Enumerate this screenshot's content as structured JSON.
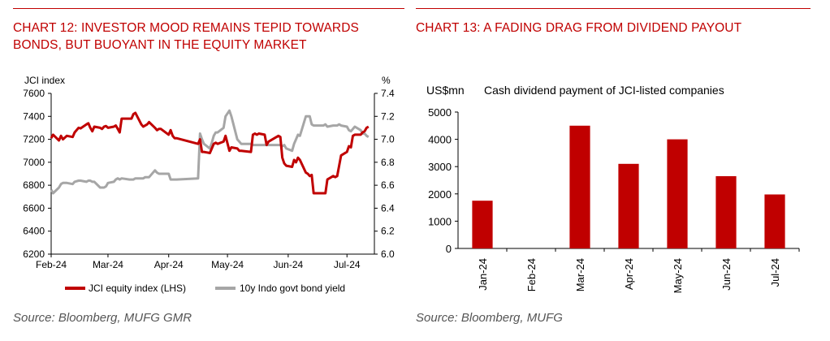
{
  "colors": {
    "accent": "#c00000",
    "series_red": "#c00000",
    "series_grey": "#a6a6a6",
    "source_text": "#555555"
  },
  "left": {
    "title_line1": "CHART 12: INVESTOR MOOD REMAINS TEPID TOWARDS",
    "title_line2": "BONDS, BUT BUOYANT IN THE EQUITY MARKET",
    "source": "Source: Bloomberg, MUFG GMR"
  },
  "right": {
    "title": "CHART 13: A FADING DRAG FROM DIVIDEND PAYOUT",
    "source": "Source: Bloomberg, MUFG"
  },
  "chart_data": [
    {
      "type": "line",
      "title": "",
      "ylabel": "JCI index",
      "y2label": "%",
      "ylim": [
        6200,
        7600
      ],
      "y2lim": [
        6.0,
        7.4
      ],
      "yticks": [
        "7600",
        "7400",
        "7200",
        "7000",
        "6800",
        "6600",
        "6400",
        "6200"
      ],
      "y2ticks": [
        "7.4",
        "7.2",
        "7.0",
        "6.8",
        "6.6",
        "6.4",
        "6.2",
        "6.0"
      ],
      "xticks": [
        "Feb-24",
        "Mar-24",
        "Apr-24",
        "May-24",
        "Jun-24",
        "Jul-24"
      ],
      "grid": false,
      "legend": "bottom",
      "series": [
        {
          "name": "JCI equity index (LHS)",
          "axis": "left",
          "color": "#c00000",
          "x": [
            "2024-02-01",
            "2024-02-02",
            "2024-02-05",
            "2024-02-06",
            "2024-02-07",
            "2024-02-09",
            "2024-02-12",
            "2024-02-13",
            "2024-02-15",
            "2024-02-16",
            "2024-02-19",
            "2024-02-20",
            "2024-02-21",
            "2024-02-22",
            "2024-02-23",
            "2024-02-26",
            "2024-02-27",
            "2024-02-28",
            "2024-02-29",
            "2024-03-01",
            "2024-03-04",
            "2024-03-05",
            "2024-03-06",
            "2024-03-07",
            "2024-03-08",
            "2024-03-12",
            "2024-03-13",
            "2024-03-14",
            "2024-03-15",
            "2024-03-18",
            "2024-03-19",
            "2024-03-20",
            "2024-03-21",
            "2024-03-22",
            "2024-03-25",
            "2024-03-26",
            "2024-03-27",
            "2024-03-28",
            "2024-04-01",
            "2024-04-02",
            "2024-04-03",
            "2024-04-04",
            "2024-04-05",
            "2024-04-16",
            "2024-04-17",
            "2024-04-18",
            "2024-04-19",
            "2024-04-22",
            "2024-04-23",
            "2024-04-24",
            "2024-04-25",
            "2024-04-26",
            "2024-04-29",
            "2024-04-30",
            "2024-05-02",
            "2024-05-03",
            "2024-05-06",
            "2024-05-07",
            "2024-05-08",
            "2024-05-13",
            "2024-05-14",
            "2024-05-15",
            "2024-05-16",
            "2024-05-17",
            "2024-05-20",
            "2024-05-21",
            "2024-05-22",
            "2024-05-27",
            "2024-05-28",
            "2024-05-29",
            "2024-05-30",
            "2024-05-31",
            "2024-06-03",
            "2024-06-04",
            "2024-06-05",
            "2024-06-06",
            "2024-06-07",
            "2024-06-10",
            "2024-06-11",
            "2024-06-12",
            "2024-06-13",
            "2024-06-14",
            "2024-06-19",
            "2024-06-20",
            "2024-06-21",
            "2024-06-24",
            "2024-06-25",
            "2024-06-26",
            "2024-06-27",
            "2024-06-28",
            "2024-07-01",
            "2024-07-02",
            "2024-07-03",
            "2024-07-04",
            "2024-07-05",
            "2024-07-08",
            "2024-07-09",
            "2024-07-10",
            "2024-07-11",
            "2024-07-12"
          ],
          "values": [
            7210,
            7240,
            7190,
            7230,
            7200,
            7230,
            7220,
            7260,
            7300,
            7295,
            7330,
            7340,
            7300,
            7270,
            7310,
            7300,
            7290,
            7310,
            7316,
            7300,
            7310,
            7320,
            7290,
            7260,
            7380,
            7380,
            7380,
            7420,
            7430,
            7330,
            7310,
            7320,
            7330,
            7350,
            7300,
            7280,
            7290,
            7290,
            7240,
            7280,
            7230,
            7210,
            7210,
            7160,
            7200,
            7090,
            7090,
            7080,
            7120,
            7160,
            7170,
            7160,
            7180,
            7230,
            7100,
            7130,
            7120,
            7100,
            7100,
            7090,
            7240,
            7250,
            7240,
            7250,
            7240,
            7150,
            7180,
            7230,
            7220,
            7040,
            6990,
            6970,
            6960,
            7020,
            7000,
            7040,
            7020,
            6910,
            6900,
            6880,
            6890,
            6730,
            6730,
            6730,
            6850,
            6880,
            6870,
            6880,
            6970,
            7060,
            7090,
            7140,
            7130,
            7230,
            7240,
            7240,
            7260,
            7270,
            7300,
            7310
          ]
        },
        {
          "name": "10y Indo govt bond yield",
          "axis": "right",
          "color": "#a6a6a6",
          "x": [
            "2024-02-01",
            "2024-02-02",
            "2024-02-05",
            "2024-02-06",
            "2024-02-07",
            "2024-02-09",
            "2024-02-12",
            "2024-02-13",
            "2024-02-15",
            "2024-02-16",
            "2024-02-19",
            "2024-02-20",
            "2024-02-21",
            "2024-02-22",
            "2024-02-23",
            "2024-02-26",
            "2024-02-27",
            "2024-02-28",
            "2024-02-29",
            "2024-03-01",
            "2024-03-04",
            "2024-03-05",
            "2024-03-06",
            "2024-03-07",
            "2024-03-08",
            "2024-03-12",
            "2024-03-13",
            "2024-03-14",
            "2024-03-15",
            "2024-03-18",
            "2024-03-19",
            "2024-03-20",
            "2024-03-21",
            "2024-03-22",
            "2024-03-25",
            "2024-03-26",
            "2024-03-27",
            "2024-03-28",
            "2024-04-01",
            "2024-04-02",
            "2024-04-03",
            "2024-04-04",
            "2024-04-05",
            "2024-04-16",
            "2024-04-17",
            "2024-04-18",
            "2024-04-19",
            "2024-04-22",
            "2024-04-23",
            "2024-04-24",
            "2024-04-25",
            "2024-04-26",
            "2024-04-29",
            "2024-04-30",
            "2024-05-02",
            "2024-05-03",
            "2024-05-06",
            "2024-05-07",
            "2024-05-08",
            "2024-05-13",
            "2024-05-14",
            "2024-05-15",
            "2024-05-16",
            "2024-05-17",
            "2024-05-20",
            "2024-05-21",
            "2024-05-22",
            "2024-05-27",
            "2024-05-28",
            "2024-05-29",
            "2024-05-30",
            "2024-05-31",
            "2024-06-03",
            "2024-06-04",
            "2024-06-05",
            "2024-06-06",
            "2024-06-07",
            "2024-06-10",
            "2024-06-11",
            "2024-06-12",
            "2024-06-13",
            "2024-06-14",
            "2024-06-19",
            "2024-06-20",
            "2024-06-21",
            "2024-06-24",
            "2024-06-25",
            "2024-06-26",
            "2024-06-27",
            "2024-06-28",
            "2024-07-01",
            "2024-07-02",
            "2024-07-03",
            "2024-07-04",
            "2024-07-05",
            "2024-07-08",
            "2024-07-09",
            "2024-07-10",
            "2024-07-11",
            "2024-07-12"
          ],
          "values": [
            6.56,
            6.53,
            6.58,
            6.61,
            6.62,
            6.62,
            6.61,
            6.63,
            6.64,
            6.64,
            6.63,
            6.64,
            6.64,
            6.63,
            6.63,
            6.58,
            6.58,
            6.58,
            6.59,
            6.62,
            6.63,
            6.65,
            6.66,
            6.65,
            6.66,
            6.65,
            6.65,
            6.65,
            6.66,
            6.66,
            6.66,
            6.67,
            6.67,
            6.67,
            6.73,
            6.71,
            6.7,
            6.7,
            6.7,
            6.65,
            6.65,
            6.65,
            6.65,
            6.66,
            7.05,
            7.0,
            6.96,
            6.92,
            6.97,
            7.03,
            7.06,
            7.06,
            7.1,
            7.2,
            7.25,
            7.2,
            7.0,
            6.98,
            6.96,
            6.96,
            6.95,
            6.95,
            6.95,
            6.95,
            6.95,
            6.95,
            6.95,
            6.95,
            6.95,
            6.94,
            6.95,
            6.92,
            6.9,
            6.96,
            7.0,
            7.04,
            7.03,
            7.2,
            7.2,
            7.2,
            7.13,
            7.12,
            7.12,
            7.13,
            7.11,
            7.12,
            7.12,
            7.12,
            7.13,
            7.12,
            7.11,
            7.08,
            7.07,
            7.09,
            7.11,
            7.08,
            7.05,
            7.05,
            7.03,
            7.02
          ]
        }
      ]
    },
    {
      "type": "bar",
      "title": "Cash dividend payment of JCI-listed companies",
      "ylabel": "US$mn",
      "categories": [
        "Jan-24",
        "Feb-24",
        "Mar-24",
        "Apr-24",
        "May-24",
        "Jun-24",
        "Jul-24"
      ],
      "values": [
        1750,
        0,
        4500,
        3100,
        4000,
        2650,
        1980
      ],
      "ylim": [
        0,
        5000
      ],
      "yticks": [
        "5000",
        "4000",
        "3000",
        "2000",
        "1000",
        "0"
      ],
      "grid": false,
      "color": "#c00000"
    }
  ]
}
